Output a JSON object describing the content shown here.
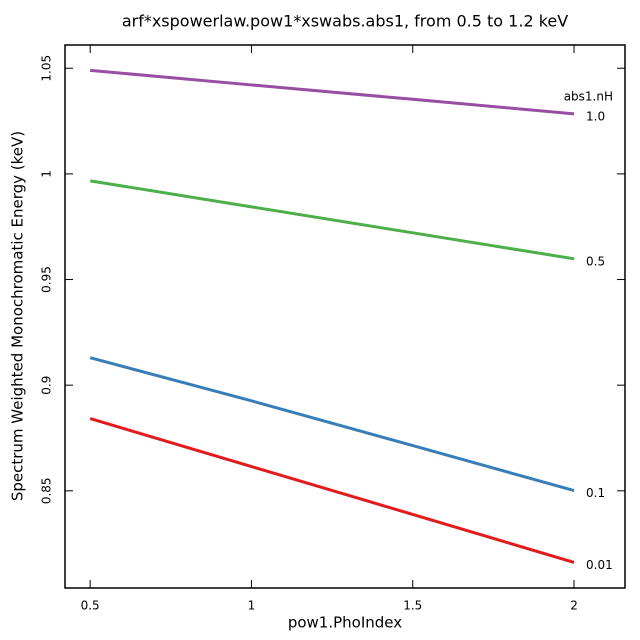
{
  "chart_data": {
    "type": "line",
    "title": "arf*xspowerlaw.pow1*xswabs.abs1, from 0.5 to 1.2 keV",
    "x_label": "pow1.PhoIndex",
    "y_label": "Spectrum Weighted Monochromatic Energy (keV)",
    "legend_title": "abs1.nH",
    "x": [
      0.5,
      1,
      1.5,
      2
    ],
    "series": [
      {
        "name": "1.0",
        "color": "#984ea3",
        "values": [
          1.049,
          1.0421,
          1.0353,
          1.0284
        ]
      },
      {
        "name": "0.5",
        "color": "#4daf4a",
        "values": [
          0.9967,
          0.9844,
          0.9721,
          0.9598
        ]
      },
      {
        "name": "0.1",
        "color": "#377eb8",
        "values": [
          0.913,
          0.8926,
          0.8714,
          0.8501
        ]
      },
      {
        "name": "0.01",
        "color": "#e41a1c",
        "values": [
          0.8842,
          0.8615,
          0.8388,
          0.8161
        ]
      }
    ],
    "xlim": [
      0.422,
      2.158
    ],
    "xticks": [
      0.5,
      1,
      1.5,
      2
    ],
    "ylim": [
      0.804,
      1.061
    ],
    "yticks": [
      0.85,
      0.9,
      0.95,
      1,
      1.05
    ]
  }
}
